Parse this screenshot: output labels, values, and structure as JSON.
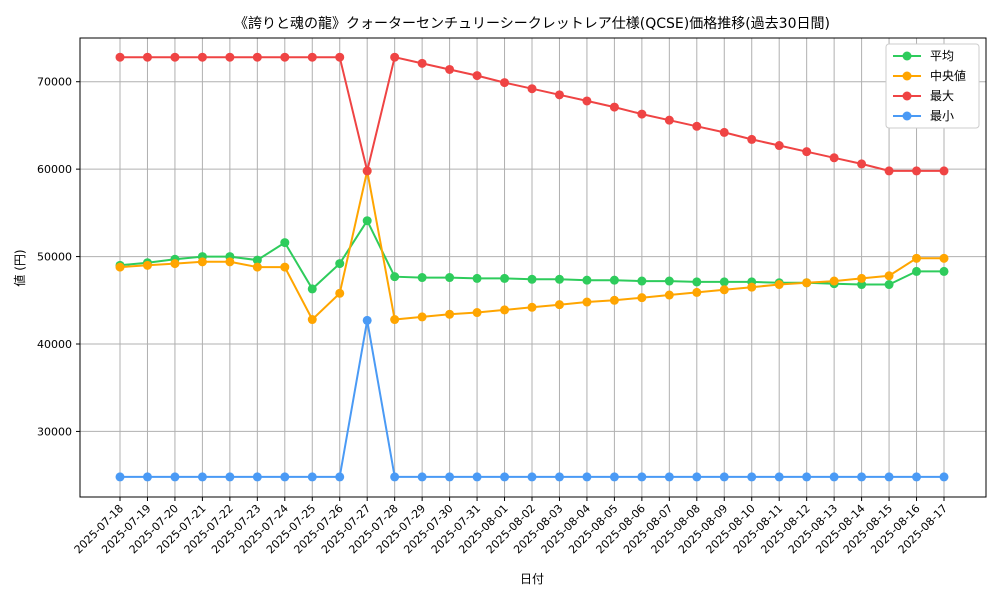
{
  "chart_data": {
    "type": "line",
    "title": "《誇りと魂の龍》クォーターセンチュリーシークレットレア仕様(QCSE)価格推移(過去30日間)",
    "xlabel": "日付",
    "ylabel": "値 (円)",
    "ylim": [
      22500,
      75000
    ],
    "yticks": [
      30000,
      40000,
      50000,
      60000,
      70000
    ],
    "grid": true,
    "legend_position": "top-right",
    "categories": [
      "2025-07-18",
      "2025-07-19",
      "2025-07-20",
      "2025-07-21",
      "2025-07-22",
      "2025-07-23",
      "2025-07-24",
      "2025-07-25",
      "2025-07-26",
      "2025-07-27",
      "2025-07-28",
      "2025-07-29",
      "2025-07-30",
      "2025-07-31",
      "2025-08-01",
      "2025-08-02",
      "2025-08-03",
      "2025-08-04",
      "2025-08-05",
      "2025-08-06",
      "2025-08-07",
      "2025-08-08",
      "2025-08-09",
      "2025-08-10",
      "2025-08-11",
      "2025-08-12",
      "2025-08-13",
      "2025-08-14",
      "2025-08-15",
      "2025-08-16",
      "2025-08-17"
    ],
    "series": [
      {
        "name": "平均",
        "color": "#2ecc5c",
        "values": [
          49000,
          49300,
          49700,
          50000,
          50000,
          49600,
          51600,
          46300,
          49200,
          54100,
          47700,
          47600,
          47600,
          47500,
          47500,
          47400,
          47400,
          47300,
          47300,
          47200,
          47200,
          47100,
          47100,
          47100,
          47000,
          47000,
          46900,
          46800,
          46800,
          48300,
          48300
        ]
      },
      {
        "name": "中央値",
        "color": "#ffa500",
        "values": [
          48800,
          49000,
          49200,
          49400,
          49400,
          48800,
          48800,
          42800,
          45800,
          59800,
          42800,
          43100,
          43400,
          43600,
          43900,
          44200,
          44500,
          44800,
          45000,
          45300,
          45600,
          45900,
          46200,
          46500,
          46800,
          47000,
          47200,
          47500,
          47800,
          49800,
          49800
        ]
      },
      {
        "name": "最大",
        "color": "#ef4444",
        "values": [
          72800,
          72800,
          72800,
          72800,
          72800,
          72800,
          72800,
          72800,
          72800,
          59800,
          72800,
          72100,
          71400,
          70700,
          69900,
          69200,
          68500,
          67800,
          67100,
          66300,
          65600,
          64900,
          64200,
          63400,
          62700,
          62000,
          61300,
          60600,
          59800,
          59800,
          59800
        ]
      },
      {
        "name": "最小",
        "color": "#4a9af5",
        "values": [
          24800,
          24800,
          24800,
          24800,
          24800,
          24800,
          24800,
          24800,
          24800,
          42700,
          24800,
          24800,
          24800,
          24800,
          24800,
          24800,
          24800,
          24800,
          24800,
          24800,
          24800,
          24800,
          24800,
          24800,
          24800,
          24800,
          24800,
          24800,
          24800,
          24800,
          24800
        ]
      }
    ]
  }
}
